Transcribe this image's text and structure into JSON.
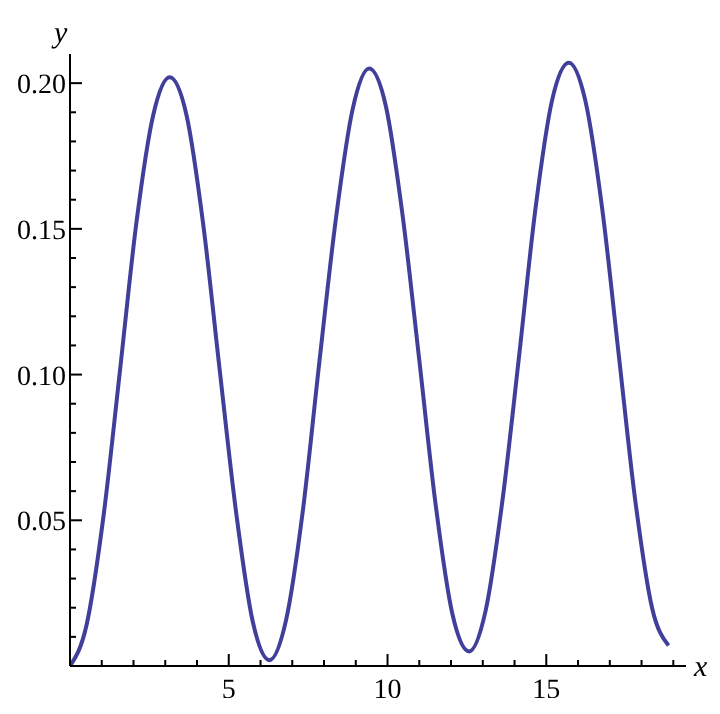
{
  "chart_data": {
    "type": "line",
    "xlabel": "x",
    "ylabel": "y",
    "x": [
      0,
      0.52,
      1.05,
      1.57,
      2.09,
      2.62,
      3.14,
      3.67,
      4.19,
      4.71,
      5.24,
      5.76,
      6.28,
      6.81,
      7.33,
      7.85,
      8.38,
      8.9,
      9.42,
      9.95,
      10.47,
      11,
      11.52,
      12.04,
      12.57,
      13.09,
      13.61,
      14.14,
      14.66,
      15.18,
      15.71,
      16.23,
      16.76,
      17.28,
      17.8,
      18.33,
      18.85
    ],
    "series": [
      {
        "color": "#40409a",
        "values": [
          0,
          0.014,
          0.051,
          0.101,
          0.152,
          0.189,
          0.202,
          0.189,
          0.152,
          0.102,
          0.052,
          0.015,
          0.002,
          0.016,
          0.053,
          0.104,
          0.154,
          0.191,
          0.205,
          0.192,
          0.155,
          0.105,
          0.055,
          0.018,
          0.005,
          0.019,
          0.056,
          0.106,
          0.157,
          0.194,
          0.207,
          0.194,
          0.157,
          0.107,
          0.057,
          0.02,
          0.007
        ]
      }
    ],
    "xlim": [
      0,
      19.4
    ],
    "ylim": [
      0,
      0.21
    ],
    "xticks": [
      {
        "value": 1,
        "label": null
      },
      {
        "value": 2,
        "label": null
      },
      {
        "value": 3,
        "label": null
      },
      {
        "value": 4,
        "label": null
      },
      5,
      {
        "value": 6,
        "label": null
      },
      {
        "value": 7,
        "label": null
      },
      {
        "value": 8,
        "label": null
      },
      {
        "value": 9,
        "label": null
      },
      10,
      {
        "value": 11,
        "label": null
      },
      {
        "value": 12,
        "label": null
      },
      {
        "value": 13,
        "label": null
      },
      {
        "value": 14,
        "label": null
      },
      15,
      {
        "value": 16,
        "label": null
      },
      {
        "value": 17,
        "label": null
      },
      {
        "value": 18,
        "label": null
      },
      {
        "value": 19,
        "label": null
      }
    ],
    "yticks": [
      {
        "value": 0.01,
        "label": null
      },
      {
        "value": 0.02,
        "label": null
      },
      {
        "value": 0.03,
        "label": null
      },
      {
        "value": 0.04,
        "label": null
      },
      {
        "value": 0.05,
        "label": "0.05"
      },
      {
        "value": 0.06,
        "label": null
      },
      {
        "value": 0.07,
        "label": null
      },
      {
        "value": 0.08,
        "label": null
      },
      {
        "value": 0.09,
        "label": null
      },
      {
        "value": 0.1,
        "label": "0.10"
      },
      {
        "value": 0.11,
        "label": null
      },
      {
        "value": 0.12,
        "label": null
      },
      {
        "value": 0.13,
        "label": null
      },
      {
        "value": 0.14,
        "label": null
      },
      {
        "value": 0.15,
        "label": "0.15"
      },
      {
        "value": 0.16,
        "label": null
      },
      {
        "value": 0.17,
        "label": null
      },
      {
        "value": 0.18,
        "label": null
      },
      {
        "value": 0.19,
        "label": null
      },
      {
        "value": 0.2,
        "label": "0.20"
      }
    ],
    "grid": false,
    "legend": false,
    "marker": "none",
    "line_style": "solid"
  }
}
